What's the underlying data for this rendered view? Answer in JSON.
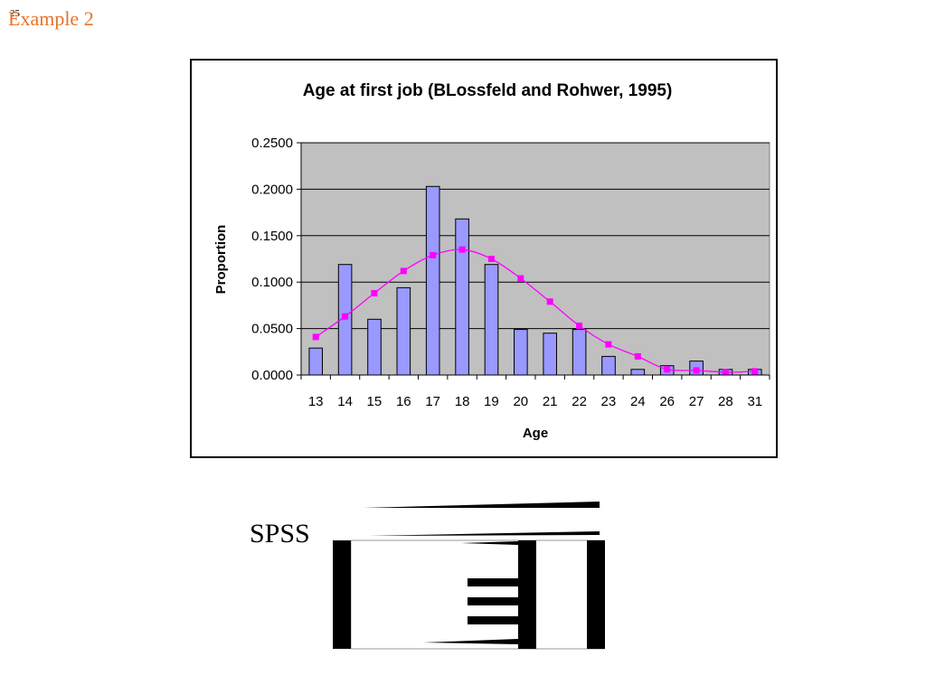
{
  "slide": {
    "number": "25",
    "title": "Example 2",
    "spss_label": "SPSS"
  },
  "colors": {
    "title": "#e8732a",
    "plot_background": "#c0c0c0",
    "bar_fill": "#9999ff",
    "bar_stroke": "#000000",
    "line": "#ff00ff",
    "marker": "#ff00ff"
  },
  "chart_data": {
    "type": "bar",
    "title": "Age at first job (BLossfeld and Rohwer, 1995)",
    "xlabel": "Age",
    "ylabel": "Proportion",
    "categories": [
      "13",
      "14",
      "15",
      "16",
      "17",
      "18",
      "19",
      "20",
      "21",
      "22",
      "23",
      "24",
      "26",
      "27",
      "28",
      "31"
    ],
    "ylim": [
      0,
      0.25
    ],
    "yticks": [
      "0.0000",
      "0.0500",
      "0.1000",
      "0.1500",
      "0.2000",
      "0.2500"
    ],
    "grid": true,
    "legend": "none",
    "series": [
      {
        "type": "bar",
        "values": [
          0.029,
          0.119,
          0.06,
          0.094,
          0.203,
          0.168,
          0.119,
          0.049,
          0.045,
          0.049,
          0.02,
          0.006,
          0.01,
          0.015,
          0.006,
          0.006
        ]
      },
      {
        "type": "line",
        "values": [
          0.041,
          0.063,
          0.088,
          0.112,
          0.129,
          0.135,
          0.125,
          0.104,
          0.079,
          0.053,
          0.033,
          0.02,
          0.006,
          0.005,
          0.003,
          0.004
        ]
      }
    ]
  }
}
